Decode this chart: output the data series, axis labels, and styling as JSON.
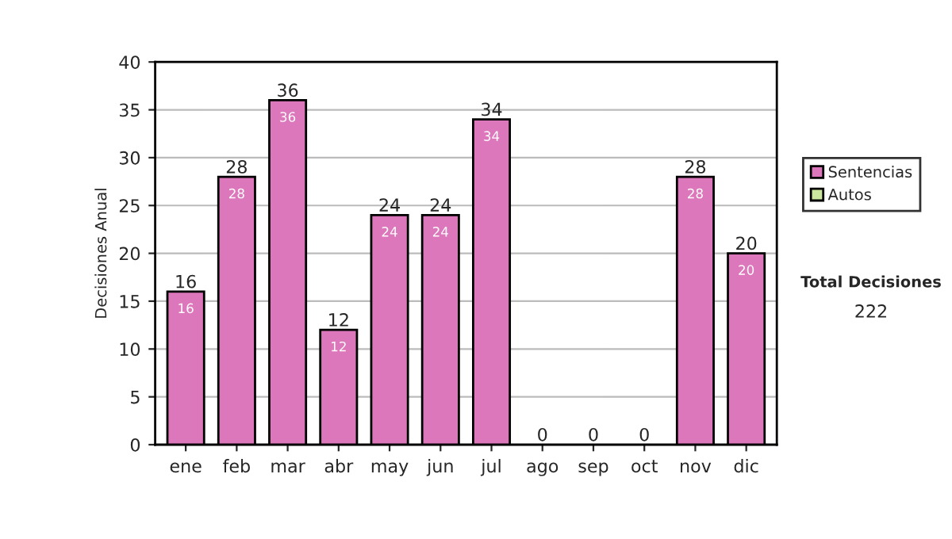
{
  "chart_data": {
    "type": "bar",
    "stacked": true,
    "ylabel": "Decisiones Anual",
    "categories": [
      "ene",
      "feb",
      "mar",
      "abr",
      "may",
      "jun",
      "jul",
      "ago",
      "sep",
      "oct",
      "nov",
      "dic"
    ],
    "series": [
      {
        "name": "Sentencias",
        "color": "#dd77bb",
        "values": [
          16,
          28,
          36,
          12,
          24,
          24,
          34,
          0,
          0,
          0,
          28,
          20
        ],
        "value_labels": [
          "16",
          "28",
          "36",
          "12",
          "24",
          "24",
          "34",
          null,
          null,
          null,
          "28",
          "20"
        ]
      },
      {
        "name": "Autos",
        "color": "#cce8a0",
        "values": [
          0,
          0,
          0,
          0,
          0,
          0,
          0,
          0,
          0,
          0,
          0,
          0
        ]
      }
    ],
    "totals": [
      "16",
      "28",
      "36",
      "12",
      "24",
      "24",
      "34",
      "0",
      "0",
      "0",
      "28",
      "20"
    ],
    "ylim": [
      0,
      40
    ],
    "yticks": [
      0,
      5,
      10,
      15,
      20,
      25,
      30,
      35,
      40
    ],
    "grid": "y",
    "legend": "right",
    "annotations": [
      "Total Decisiones",
      "222"
    ]
  }
}
